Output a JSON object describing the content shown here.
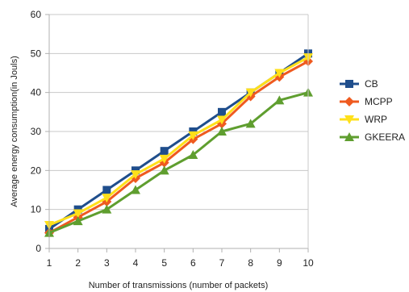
{
  "chart_data": {
    "type": "line",
    "title": "",
    "xlabel": "Number of transmissions (number of packets)",
    "ylabel": "Average energy consumption(in Jouls)",
    "x": [
      1,
      2,
      3,
      4,
      5,
      6,
      7,
      8,
      9,
      10
    ],
    "xlim": [
      1,
      10
    ],
    "ylim": [
      0,
      60
    ],
    "yticks": [
      0,
      10,
      20,
      30,
      40,
      50,
      60
    ],
    "grid": true,
    "legend_position": "right",
    "series": [
      {
        "name": "CB",
        "color": "#1f4e8c",
        "marker": "square",
        "values": [
          5,
          10,
          15,
          20,
          25,
          30,
          35,
          40,
          45,
          50
        ]
      },
      {
        "name": "MCPP",
        "color": "#ef5a1f",
        "marker": "diamond",
        "values": [
          4,
          8,
          12,
          18,
          22,
          28,
          32,
          39,
          44,
          48
        ]
      },
      {
        "name": "WRP",
        "color": "#ffe01a",
        "marker": "triangle-down",
        "values": [
          6,
          9,
          13,
          19,
          23,
          29,
          33,
          40,
          45,
          49
        ]
      },
      {
        "name": "GKEERA",
        "color": "#5f9e2f",
        "marker": "triangle-up",
        "values": [
          4,
          7,
          10,
          15,
          20,
          24,
          30,
          32,
          38,
          40
        ]
      }
    ]
  }
}
